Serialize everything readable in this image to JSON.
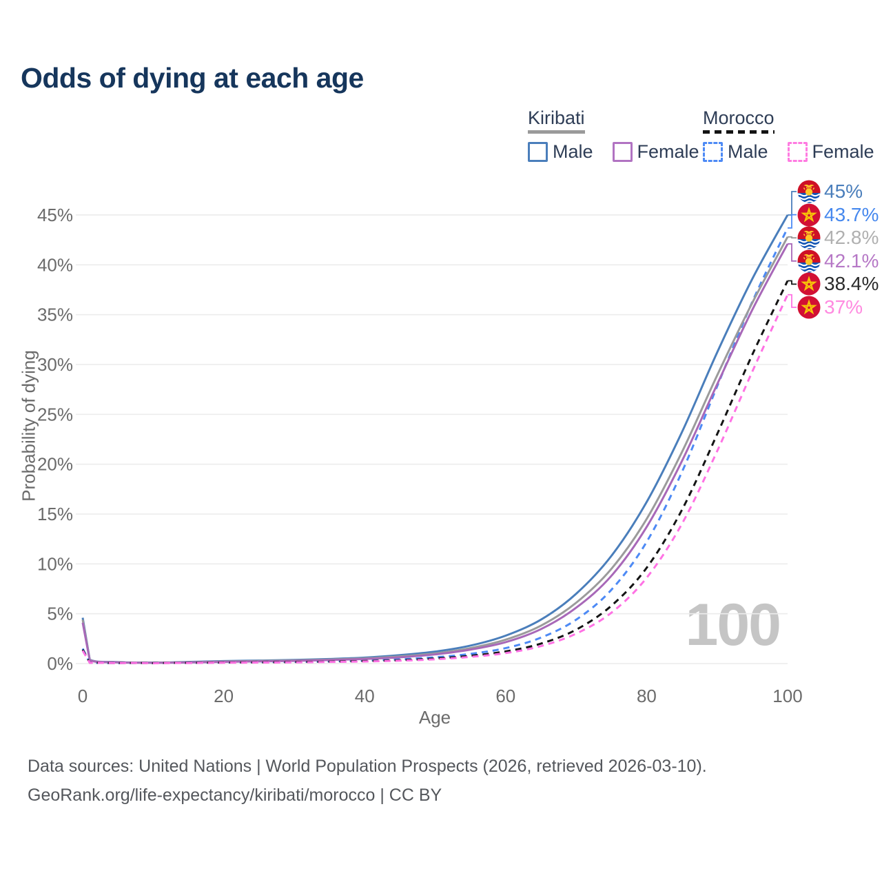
{
  "title": "Odds of dying at each age",
  "watermark_age": "100",
  "legend": {
    "groups": [
      {
        "name": "Kiribati",
        "underline": "solid",
        "underline_color": "#9a9a9a",
        "items": [
          {
            "label": "Male",
            "color": "#4a7ebb",
            "dashed": false
          },
          {
            "label": "Female",
            "color": "#b173c2",
            "dashed": false
          }
        ]
      },
      {
        "name": "Morocco",
        "underline": "dashed",
        "underline_color": "#141414",
        "items": [
          {
            "label": "Male",
            "color": "#4d8af5",
            "dashed": true
          },
          {
            "label": "Female",
            "color": "#ff7be1",
            "dashed": true
          }
        ]
      }
    ]
  },
  "chart_data": {
    "type": "line",
    "title": "Odds of dying at each age",
    "xlabel": "Age",
    "ylabel": "Probability of dying",
    "xlim": [
      0,
      100
    ],
    "ylim": [
      0,
      47
    ],
    "x_ticks": [
      0,
      20,
      40,
      60,
      80,
      100
    ],
    "y_ticks": [
      0,
      5,
      10,
      15,
      20,
      25,
      30,
      35,
      40,
      45
    ],
    "y_tick_suffix": "%",
    "grid": "horizontal-only",
    "legend_position": "top-right",
    "series": [
      {
        "name": "Kiribati Male",
        "country": "kiribati",
        "color": "#4a7ebb",
        "dash": null,
        "end_label": "45%",
        "end_label_color": "#4a7ebb",
        "points": [
          [
            0,
            4.6
          ],
          [
            1,
            0.4
          ],
          [
            5,
            0.15
          ],
          [
            10,
            0.1
          ],
          [
            15,
            0.16
          ],
          [
            20,
            0.25
          ],
          [
            25,
            0.3
          ],
          [
            30,
            0.36
          ],
          [
            35,
            0.46
          ],
          [
            40,
            0.6
          ],
          [
            45,
            0.85
          ],
          [
            50,
            1.2
          ],
          [
            55,
            1.8
          ],
          [
            60,
            2.8
          ],
          [
            65,
            4.4
          ],
          [
            70,
            7.0
          ],
          [
            75,
            10.8
          ],
          [
            80,
            16.2
          ],
          [
            85,
            23.2
          ],
          [
            90,
            31.2
          ],
          [
            95,
            38.6
          ],
          [
            100,
            45.0
          ]
        ]
      },
      {
        "name": "Morocco Male",
        "country": "morocco",
        "color": "#4d8af5",
        "dash": "9 7",
        "end_label": "43.7%",
        "end_label_color": "#4688ee",
        "points": [
          [
            0,
            1.5
          ],
          [
            1,
            0.1
          ],
          [
            5,
            0.05
          ],
          [
            10,
            0.05
          ],
          [
            15,
            0.08
          ],
          [
            20,
            0.12
          ],
          [
            25,
            0.15
          ],
          [
            30,
            0.18
          ],
          [
            35,
            0.23
          ],
          [
            40,
            0.31
          ],
          [
            45,
            0.43
          ],
          [
            50,
            0.63
          ],
          [
            55,
            0.97
          ],
          [
            60,
            1.55
          ],
          [
            65,
            2.6
          ],
          [
            70,
            4.4
          ],
          [
            75,
            7.4
          ],
          [
            80,
            12.2
          ],
          [
            85,
            19.2
          ],
          [
            90,
            27.8
          ],
          [
            95,
            36.3
          ],
          [
            100,
            43.7
          ]
        ]
      },
      {
        "name": "Kiribati Both sexes",
        "country": "kiribati",
        "color": "#9b9b9b",
        "dash": null,
        "end_label": "42.8%",
        "end_label_color": "#b0b0b0",
        "points": [
          [
            0,
            4.4
          ],
          [
            1,
            0.37
          ],
          [
            5,
            0.13
          ],
          [
            10,
            0.09
          ],
          [
            15,
            0.13
          ],
          [
            20,
            0.21
          ],
          [
            25,
            0.26
          ],
          [
            30,
            0.31
          ],
          [
            35,
            0.4
          ],
          [
            40,
            0.52
          ],
          [
            45,
            0.72
          ],
          [
            50,
            1.02
          ],
          [
            55,
            1.55
          ],
          [
            60,
            2.4
          ],
          [
            65,
            3.8
          ],
          [
            70,
            6.1
          ],
          [
            75,
            9.5
          ],
          [
            80,
            14.5
          ],
          [
            85,
            21.2
          ],
          [
            90,
            28.9
          ],
          [
            95,
            36.2
          ],
          [
            100,
            42.8
          ]
        ]
      },
      {
        "name": "Kiribati Female",
        "country": "kiribati",
        "color": "#a868b8",
        "dash": null,
        "end_label": "42.1%",
        "end_label_color": "#b678c6",
        "points": [
          [
            0,
            4.1
          ],
          [
            1,
            0.34
          ],
          [
            5,
            0.12
          ],
          [
            10,
            0.08
          ],
          [
            15,
            0.11
          ],
          [
            20,
            0.17
          ],
          [
            25,
            0.22
          ],
          [
            30,
            0.27
          ],
          [
            35,
            0.35
          ],
          [
            40,
            0.46
          ],
          [
            45,
            0.63
          ],
          [
            50,
            0.92
          ],
          [
            55,
            1.4
          ],
          [
            60,
            2.15
          ],
          [
            65,
            3.45
          ],
          [
            70,
            5.6
          ],
          [
            75,
            8.8
          ],
          [
            80,
            13.7
          ],
          [
            85,
            20.3
          ],
          [
            90,
            28.0
          ],
          [
            95,
            35.5
          ],
          [
            100,
            42.1
          ]
        ]
      },
      {
        "name": "Morocco Both sexes",
        "country": "morocco",
        "color": "#141414",
        "dash": "9 7",
        "end_label": "38.4%",
        "end_label_color": "#2b2b2b",
        "points": [
          [
            0,
            1.4
          ],
          [
            1,
            0.09
          ],
          [
            5,
            0.05
          ],
          [
            10,
            0.04
          ],
          [
            15,
            0.07
          ],
          [
            20,
            0.1
          ],
          [
            25,
            0.12
          ],
          [
            30,
            0.15
          ],
          [
            35,
            0.19
          ],
          [
            40,
            0.25
          ],
          [
            45,
            0.34
          ],
          [
            50,
            0.51
          ],
          [
            55,
            0.78
          ],
          [
            60,
            1.22
          ],
          [
            65,
            2.0
          ],
          [
            70,
            3.4
          ],
          [
            75,
            5.8
          ],
          [
            80,
            9.6
          ],
          [
            85,
            15.4
          ],
          [
            90,
            23.0
          ],
          [
            95,
            31.0
          ],
          [
            100,
            38.4
          ]
        ]
      },
      {
        "name": "Morocco Female",
        "country": "morocco",
        "color": "#ff72e4",
        "dash": "9 7",
        "end_label": "37%",
        "end_label_color": "#ff8ae0",
        "points": [
          [
            0,
            1.3
          ],
          [
            1,
            0.08
          ],
          [
            5,
            0.04
          ],
          [
            10,
            0.03
          ],
          [
            15,
            0.05
          ],
          [
            20,
            0.08
          ],
          [
            25,
            0.1
          ],
          [
            30,
            0.12
          ],
          [
            35,
            0.16
          ],
          [
            40,
            0.21
          ],
          [
            45,
            0.29
          ],
          [
            50,
            0.43
          ],
          [
            55,
            0.67
          ],
          [
            60,
            1.05
          ],
          [
            65,
            1.75
          ],
          [
            70,
            3.0
          ],
          [
            75,
            5.1
          ],
          [
            80,
            8.6
          ],
          [
            85,
            14.0
          ],
          [
            90,
            21.3
          ],
          [
            95,
            29.3
          ],
          [
            100,
            37.0
          ]
        ]
      }
    ]
  },
  "footer": {
    "line1": "Data sources: United Nations | World Population Prospects (2026, retrieved 2026-03-10).",
    "line2": "GeoRank.org/life-expectancy/kiribati/morocco | CC BY"
  }
}
